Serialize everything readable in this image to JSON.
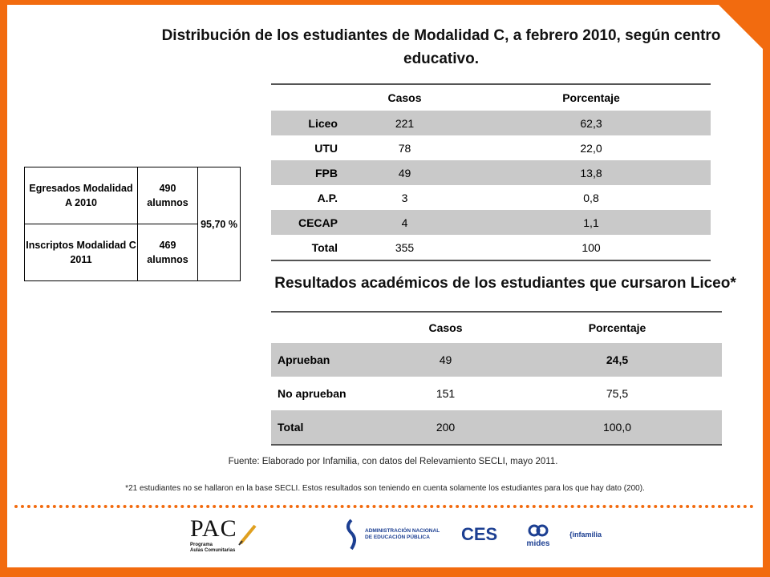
{
  "title_main": "Distribución de los estudiantes de Modalidad C, a febrero 2010, según centro educativo.",
  "title_results": "Resultados académicos de los estudiantes que cursaron Liceo*",
  "table_distribution": {
    "headers": [
      "",
      "Casos",
      "Porcentaje"
    ],
    "rows": [
      {
        "label": "Liceo",
        "casos": "221",
        "porcentaje": "62,3"
      },
      {
        "label": "UTU",
        "casos": "78",
        "porcentaje": "22,0"
      },
      {
        "label": "FPB",
        "casos": "49",
        "porcentaje": "13,8"
      },
      {
        "label": "A.P.",
        "casos": "3",
        "porcentaje": "0,8"
      },
      {
        "label": "CECAP",
        "casos": "4",
        "porcentaje": "1,1"
      },
      {
        "label": "Total",
        "casos": "355",
        "porcentaje": "100"
      }
    ]
  },
  "table_results": {
    "headers": [
      "",
      "Casos",
      "Porcentaje"
    ],
    "rows": [
      {
        "label": "Aprueban",
        "casos": "49",
        "porcentaje": "24,5"
      },
      {
        "label": "No aprueban",
        "casos": "151",
        "porcentaje": "75,5"
      },
      {
        "label": "Total",
        "casos": "200",
        "porcentaje": "100,0"
      }
    ]
  },
  "table_enrollment": {
    "egresados_label": "Egresados Modalidad A 2010",
    "egresados_value": "490 alumnos",
    "inscriptos_label": "Inscriptos Modalidad C 2011",
    "inscriptos_value": "469 alumnos",
    "ratio": "95,70 %"
  },
  "source_note": "Fuente: Elaborado por Infamilia, con datos del Relevamiento SECLI, mayo 2011.",
  "footnote": "*21 estudiantes no se hallaron en la base SECLI. Estos resultados son teniendo en cuenta solamente los estudiantes para los que hay dato (200).",
  "logos": {
    "pac": "PAC",
    "pac_sub1": "Programa",
    "pac_sub2": "Aulas Comunitarias",
    "anep1": "ADMINISTRACIÓN NACIONAL",
    "anep2": "DE EDUCACIÓN PÚBLICA",
    "ces": "CES",
    "mides": "mides",
    "infamilia": "{infamilia"
  },
  "colors": {
    "accent": "#f26b0f",
    "row_shade": "#c9c9c9",
    "logo_blue": "#1c3f92"
  }
}
